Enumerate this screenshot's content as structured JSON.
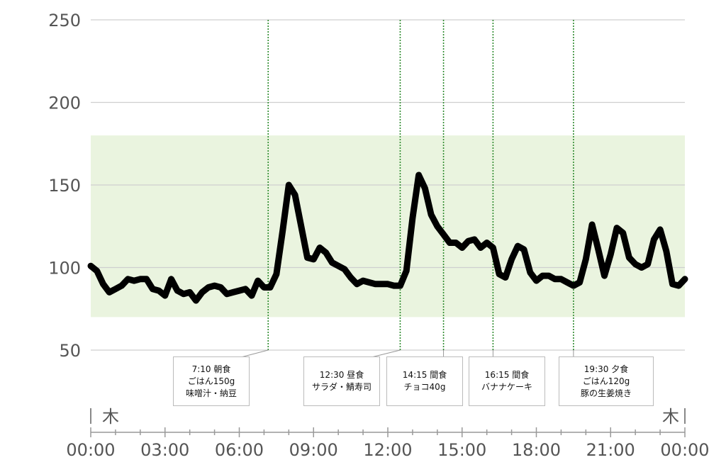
{
  "chart_data": {
    "type": "line",
    "y_ticks": [
      250,
      200,
      150,
      100,
      50
    ],
    "ylim": [
      50,
      250
    ],
    "x_ticks": [
      "00:00",
      "03:00",
      "06:00",
      "09:00",
      "12:00",
      "15:00",
      "18:00",
      "21:00",
      "00:00"
    ],
    "xlim_hours": [
      0,
      24
    ],
    "day_labels": {
      "start": "木",
      "end": "木"
    },
    "target_range": {
      "low": 70,
      "high": 180,
      "color": "#eaf4df"
    },
    "line_color": "#000000",
    "marker_color": "#2e8b2e",
    "series": [
      {
        "x": [
          0,
          0.25,
          0.5,
          0.75,
          1.0,
          1.25,
          1.5,
          1.75,
          2.0,
          2.25,
          2.5,
          2.75,
          3.0,
          3.25,
          3.5,
          3.75,
          4.0,
          4.25,
          4.5,
          4.75,
          5.0,
          5.25,
          5.5,
          5.75,
          6.0,
          6.25,
          6.5,
          6.75,
          7.0,
          7.25,
          7.5,
          7.75,
          8.0,
          8.25,
          8.5,
          8.75,
          9.0,
          9.25,
          9.5,
          9.75,
          10.0,
          10.25,
          10.5,
          10.75,
          11.0,
          11.25,
          11.5,
          11.75,
          12.0,
          12.25,
          12.5,
          12.75,
          13.0,
          13.25,
          13.5,
          13.75,
          14.0,
          14.25,
          14.5,
          14.75,
          15.0,
          15.25,
          15.5,
          15.75,
          16.0,
          16.25,
          16.5,
          16.75,
          17.0,
          17.25,
          17.5,
          17.75,
          18.0,
          18.25,
          18.5,
          18.75,
          19.0,
          19.25,
          19.5,
          19.75,
          20.0,
          20.25,
          20.5,
          20.75,
          21.0,
          21.25,
          21.5,
          21.75,
          22.0,
          22.25,
          22.5,
          22.75,
          23.0,
          23.25,
          23.5,
          23.75,
          24.0
        ],
        "y": [
          101,
          98,
          90,
          85,
          87,
          89,
          93,
          92,
          93,
          93,
          87,
          86,
          83,
          93,
          86,
          84,
          85,
          80,
          85,
          88,
          89,
          88,
          84,
          85,
          86,
          87,
          83,
          92,
          88,
          88,
          96,
          122,
          150,
          144,
          125,
          106,
          105,
          112,
          109,
          103,
          101,
          99,
          94,
          90,
          92,
          91,
          90,
          90,
          90,
          89,
          89,
          98,
          130,
          156,
          148,
          132,
          125,
          120,
          115,
          115,
          112,
          116,
          117,
          112,
          115,
          112,
          96,
          94,
          105,
          113,
          111,
          97,
          92,
          95,
          95,
          93,
          93,
          91,
          89,
          91,
          105,
          126,
          111,
          95,
          108,
          124,
          121,
          106,
          102,
          100,
          102,
          117,
          123,
          110,
          90,
          89,
          93
        ]
      }
    ],
    "annotations": [
      {
        "time": 7.1667,
        "label_time": "7:10 朝食",
        "line2": "ごはん150g",
        "line3": "味噌汁・納豆"
      },
      {
        "time": 12.5,
        "label_time": "12:30 昼食",
        "line2": "サラダ・鯖寿司",
        "line3": ""
      },
      {
        "time": 14.25,
        "label_time": "14:15 間食",
        "line2": "チョコ40g",
        "line3": ""
      },
      {
        "time": 16.25,
        "label_time": "16:15 間食",
        "line2": "バナナケーキ",
        "line3": ""
      },
      {
        "time": 19.5,
        "label_time": "19:30 夕食",
        "line2": "ごはん120g",
        "line3": "豚の生姜焼き"
      }
    ]
  }
}
